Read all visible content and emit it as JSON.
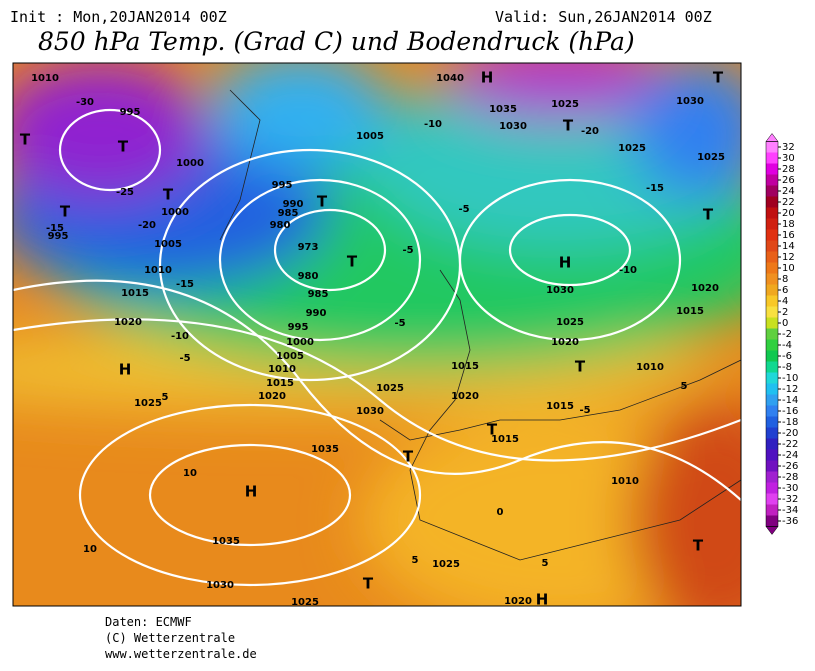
{
  "header": {
    "init": "Init : Mon,20JAN2014 00Z",
    "valid": "Valid: Sun,26JAN2014 00Z",
    "title": "850 hPa Temp. (Grad C) und Bodendruck (hPa)"
  },
  "colorbar": {
    "ticks": [
      32,
      30,
      28,
      26,
      24,
      22,
      20,
      18,
      16,
      14,
      12,
      10,
      8,
      6,
      4,
      2,
      0,
      -2,
      -4,
      -6,
      -8,
      -10,
      -12,
      -14,
      -16,
      -18,
      -20,
      -22,
      -24,
      -26,
      -28,
      -30,
      -32,
      -34,
      -36
    ],
    "colors": [
      "#ff80ff",
      "#ff40ff",
      "#e000e0",
      "#c000a0",
      "#a00060",
      "#a00020",
      "#c01010",
      "#d02010",
      "#e03010",
      "#e04818",
      "#e86018",
      "#ee7818",
      "#f09020",
      "#f0a820",
      "#f8c828",
      "#f8e040",
      "#c8e020",
      "#60d040",
      "#30d040",
      "#10c850",
      "#10d890",
      "#20d8d8",
      "#20c0f0",
      "#30a0f0",
      "#3080f0",
      "#2060e0",
      "#2040d0",
      "#3020c0",
      "#5010c0",
      "#7010c0",
      "#a020d0",
      "#c020e0",
      "#e040f0",
      "#c020c0",
      "#800080"
    ]
  },
  "map": {
    "labels": [
      "1010",
      "995",
      "-30",
      "T",
      "T",
      "1000",
      "-25",
      "T",
      "T",
      "1000",
      "-20",
      "-15",
      "995",
      "1005",
      "1010",
      "-15",
      "1015",
      "1020",
      "-10",
      "-5",
      "H",
      "1025",
      "5",
      "1040",
      "H",
      "1035",
      "1025",
      "1030",
      "T",
      "-20",
      "1030",
      "T",
      "-10",
      "1005",
      "995",
      "990",
      "985",
      "980",
      "T",
      "973",
      "T",
      "980",
      "985",
      "990",
      "995",
      "1000",
      "1005",
      "1010",
      "1015",
      "1020",
      "1025",
      "1030",
      "-5",
      "-5",
      "-5",
      "H",
      "-10",
      "1030",
      "1025",
      "1020",
      "T",
      "1015",
      "1020",
      "1015",
      "-5",
      "1010",
      "5",
      "1015",
      "1020",
      "T",
      "-15",
      "1025",
      "1025",
      "1035",
      "10",
      "H",
      "1035",
      "10",
      "1030",
      "1025",
      "T",
      "T",
      "1015",
      "0",
      "T",
      "1025",
      "5",
      "5",
      "1020",
      "H",
      "1010",
      "T"
    ]
  },
  "footer": {
    "lines": [
      "Daten: ECMWF",
      "(C) Wetterzentrale",
      "www.wetterzentrale.de"
    ]
  }
}
